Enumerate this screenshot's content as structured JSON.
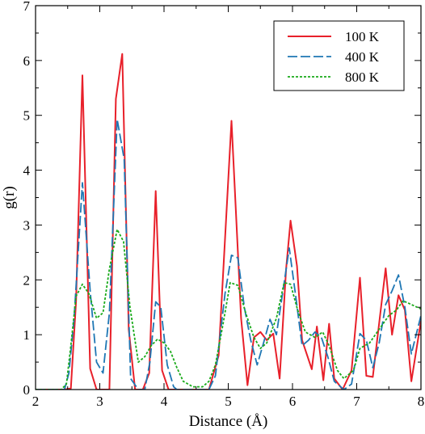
{
  "chart_data": {
    "type": "line",
    "title": "",
    "xlabel": "Distance (Å)",
    "ylabel": "g(r)",
    "xlim": [
      2,
      8
    ],
    "ylim": [
      0,
      7
    ],
    "xticks": [
      2,
      3,
      4,
      5,
      6,
      7,
      8
    ],
    "yticks": [
      0,
      1,
      2,
      3,
      4,
      5,
      6,
      7
    ],
    "grid": false,
    "legend_position": "top-right",
    "series": [
      {
        "name": "100 K",
        "color": "#e8202a",
        "dash": "solid",
        "points": [
          [
            2.0,
            0
          ],
          [
            2.45,
            0
          ],
          [
            2.55,
            0.02
          ],
          [
            2.63,
            1.6
          ],
          [
            2.73,
            5.73
          ],
          [
            2.85,
            0.38
          ],
          [
            2.95,
            0.0
          ],
          [
            3.15,
            0.0
          ],
          [
            3.25,
            5.3
          ],
          [
            3.35,
            6.12
          ],
          [
            3.45,
            1.1
          ],
          [
            3.55,
            0.0
          ],
          [
            3.67,
            0.0
          ],
          [
            3.77,
            0.3
          ],
          [
            3.87,
            3.62
          ],
          [
            3.97,
            0.35
          ],
          [
            4.07,
            0.0
          ],
          [
            4.7,
            0.0
          ],
          [
            4.85,
            0.62
          ],
          [
            5.05,
            4.9
          ],
          [
            5.2,
            1.3
          ],
          [
            5.3,
            0.08
          ],
          [
            5.4,
            0.95
          ],
          [
            5.5,
            1.05
          ],
          [
            5.6,
            0.9
          ],
          [
            5.7,
            1.02
          ],
          [
            5.8,
            0.2
          ],
          [
            5.9,
            2.2
          ],
          [
            5.97,
            3.08
          ],
          [
            6.07,
            2.25
          ],
          [
            6.15,
            0.9
          ],
          [
            6.3,
            0.37
          ],
          [
            6.38,
            1.15
          ],
          [
            6.48,
            0.17
          ],
          [
            6.57,
            1.2
          ],
          [
            6.65,
            0.2
          ],
          [
            6.78,
            0.0
          ],
          [
            6.92,
            0.35
          ],
          [
            7.05,
            2.04
          ],
          [
            7.15,
            0.25
          ],
          [
            7.25,
            0.23
          ],
          [
            7.45,
            2.21
          ],
          [
            7.55,
            1.0
          ],
          [
            7.65,
            1.72
          ],
          [
            7.75,
            1.45
          ],
          [
            7.85,
            0.15
          ],
          [
            8.0,
            1.25
          ]
        ]
      },
      {
        "name": "400 K",
        "color": "#1f77b4",
        "dash": "longdash",
        "points": [
          [
            2.0,
            0
          ],
          [
            2.45,
            0
          ],
          [
            2.52,
            0.3
          ],
          [
            2.6,
            1.3
          ],
          [
            2.73,
            3.77
          ],
          [
            2.85,
            1.8
          ],
          [
            2.95,
            0.5
          ],
          [
            3.05,
            0.3
          ],
          [
            3.15,
            1.4
          ],
          [
            3.27,
            4.93
          ],
          [
            3.38,
            4.2
          ],
          [
            3.48,
            0.2
          ],
          [
            3.6,
            0.0
          ],
          [
            3.7,
            0.0
          ],
          [
            3.78,
            0.5
          ],
          [
            3.87,
            1.6
          ],
          [
            3.95,
            1.5
          ],
          [
            4.05,
            0.45
          ],
          [
            4.15,
            0.05
          ],
          [
            4.2,
            0.0
          ],
          [
            4.7,
            0.0
          ],
          [
            4.8,
            0.25
          ],
          [
            4.95,
            1.75
          ],
          [
            5.05,
            2.45
          ],
          [
            5.15,
            2.4
          ],
          [
            5.25,
            1.5
          ],
          [
            5.35,
            0.9
          ],
          [
            5.45,
            0.45
          ],
          [
            5.55,
            0.85
          ],
          [
            5.65,
            1.28
          ],
          [
            5.75,
            1.0
          ],
          [
            5.87,
            1.95
          ],
          [
            5.95,
            2.58
          ],
          [
            6.05,
            1.7
          ],
          [
            6.15,
            0.8
          ],
          [
            6.25,
            0.9
          ],
          [
            6.35,
            1.05
          ],
          [
            6.45,
            0.95
          ],
          [
            6.55,
            0.6
          ],
          [
            6.65,
            0.15
          ],
          [
            6.8,
            0.0
          ],
          [
            6.92,
            0.1
          ],
          [
            7.05,
            1.02
          ],
          [
            7.15,
            0.9
          ],
          [
            7.25,
            0.4
          ],
          [
            7.35,
            0.85
          ],
          [
            7.45,
            1.55
          ],
          [
            7.55,
            1.8
          ],
          [
            7.65,
            2.09
          ],
          [
            7.75,
            1.5
          ],
          [
            7.85,
            0.65
          ],
          [
            8.0,
            1.35
          ]
        ]
      },
      {
        "name": "800 K",
        "color": "#1aaa1a",
        "dash": "dotted",
        "points": [
          [
            2.0,
            0
          ],
          [
            2.4,
            0
          ],
          [
            2.48,
            0.1
          ],
          [
            2.55,
            0.8
          ],
          [
            2.63,
            1.7
          ],
          [
            2.73,
            1.92
          ],
          [
            2.83,
            1.75
          ],
          [
            2.95,
            1.3
          ],
          [
            3.05,
            1.4
          ],
          [
            3.15,
            2.2
          ],
          [
            3.27,
            2.92
          ],
          [
            3.37,
            2.7
          ],
          [
            3.47,
            1.5
          ],
          [
            3.6,
            0.5
          ],
          [
            3.7,
            0.6
          ],
          [
            3.8,
            0.8
          ],
          [
            3.9,
            0.92
          ],
          [
            4.0,
            0.85
          ],
          [
            4.1,
            0.7
          ],
          [
            4.2,
            0.4
          ],
          [
            4.3,
            0.15
          ],
          [
            4.45,
            0.05
          ],
          [
            4.6,
            0.05
          ],
          [
            4.7,
            0.15
          ],
          [
            4.8,
            0.45
          ],
          [
            4.92,
            1.2
          ],
          [
            5.03,
            1.95
          ],
          [
            5.15,
            1.9
          ],
          [
            5.27,
            1.4
          ],
          [
            5.4,
            0.95
          ],
          [
            5.5,
            0.75
          ],
          [
            5.6,
            0.85
          ],
          [
            5.75,
            1.3
          ],
          [
            5.87,
            1.95
          ],
          [
            5.97,
            1.92
          ],
          [
            6.08,
            1.45
          ],
          [
            6.2,
            1.05
          ],
          [
            6.35,
            0.95
          ],
          [
            6.47,
            1.05
          ],
          [
            6.57,
            0.8
          ],
          [
            6.7,
            0.35
          ],
          [
            6.8,
            0.2
          ],
          [
            6.95,
            0.35
          ],
          [
            7.05,
            0.75
          ],
          [
            7.2,
            0.85
          ],
          [
            7.35,
            1.1
          ],
          [
            7.5,
            1.35
          ],
          [
            7.62,
            1.45
          ],
          [
            7.72,
            1.62
          ],
          [
            7.85,
            1.55
          ],
          [
            8.0,
            1.47
          ]
        ]
      }
    ]
  }
}
